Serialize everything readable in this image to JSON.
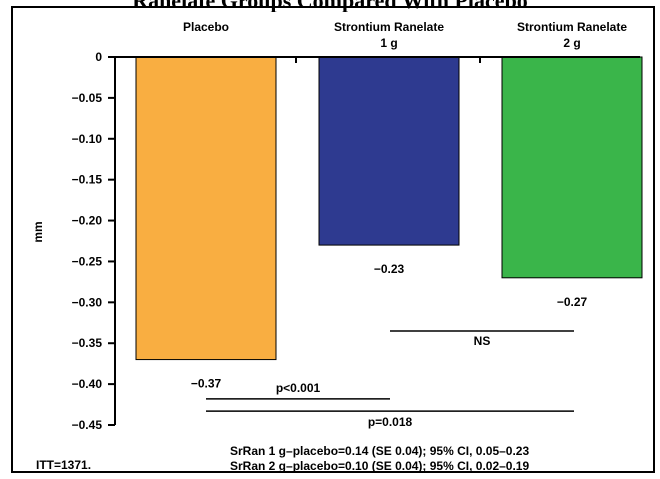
{
  "header": {
    "partial_title": "Ranelate Groups Compared With Placebo"
  },
  "chart_data": {
    "type": "bar",
    "categories": [
      "Placebo",
      "Strontium Ranelate\n1 g",
      "Strontium Ranelate\n2 g"
    ],
    "values": [
      -0.37,
      -0.23,
      -0.27
    ],
    "data_labels": [
      "−0.37",
      "−0.23",
      "−0.27"
    ],
    "colors": [
      "#F9AE41",
      "#2E3A90",
      "#3AB54A"
    ],
    "ylabel": "mm",
    "ylim": [
      -0.45,
      0
    ],
    "yticks": [
      0,
      -0.05,
      -0.1,
      -0.15,
      -0.2,
      -0.25,
      -0.3,
      -0.35,
      -0.4,
      -0.45
    ],
    "ytick_labels": [
      "0",
      "−0.05",
      "−0.10",
      "−0.15",
      "−0.20",
      "−0.25",
      "−0.30",
      "−0.35",
      "−0.40",
      "−0.45"
    ],
    "grid": false,
    "comparisons": [
      {
        "from": 1,
        "to": 2,
        "label": "NS",
        "level": -0.335
      },
      {
        "from": 0,
        "to": 1,
        "label": "p<0.001",
        "level": -0.418
      },
      {
        "from": 0,
        "to": 2,
        "label": "p=0.018",
        "level": -0.433
      }
    ]
  },
  "footer": {
    "itt": "ITT=1371.",
    "note1": "SrRan 1 g–placebo=0.14 (SE 0.04); 95% CI, 0.05–0.23",
    "note2": "SrRan 2 g–placebo=0.10 (SE 0.04); 95% CI, 0.02–0.19"
  }
}
